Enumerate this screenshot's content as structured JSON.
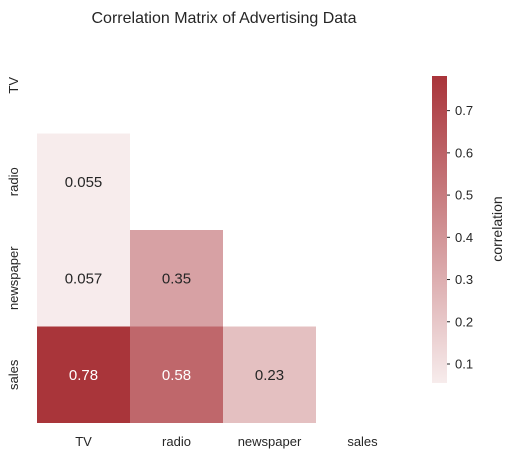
{
  "chart_data": {
    "type": "heatmap",
    "title": "Correlation Matrix of Advertising Data",
    "x_categories": [
      "TV",
      "radio",
      "newspaper",
      "sales"
    ],
    "y_categories": [
      "TV",
      "radio",
      "newspaper",
      "sales"
    ],
    "mask": "upper triangle including diagonal",
    "cells": [
      {
        "row": "radio",
        "col": "TV",
        "value": 0.055,
        "label": "0.055"
      },
      {
        "row": "newspaper",
        "col": "TV",
        "value": 0.057,
        "label": "0.057"
      },
      {
        "row": "newspaper",
        "col": "radio",
        "value": 0.35,
        "label": "0.35"
      },
      {
        "row": "sales",
        "col": "TV",
        "value": 0.78,
        "label": "0.78"
      },
      {
        "row": "sales",
        "col": "radio",
        "value": 0.58,
        "label": "0.58"
      },
      {
        "row": "sales",
        "col": "newspaper",
        "value": 0.23,
        "label": "0.23"
      }
    ],
    "colorbar": {
      "label": "correlation",
      "range": [
        0.055,
        0.782
      ],
      "ticks": [
        "0.1",
        "0.2",
        "0.3",
        "0.4",
        "0.5",
        "0.6",
        "0.7"
      ],
      "tick_values": [
        0.1,
        0.2,
        0.3,
        0.4,
        0.5,
        0.6,
        0.7
      ]
    },
    "colormap": {
      "low_color": "#f7ecec",
      "high_color": "#a9343a"
    },
    "label_colors": {
      "dark_text": "#262626",
      "light_text": "#ffffff"
    }
  }
}
